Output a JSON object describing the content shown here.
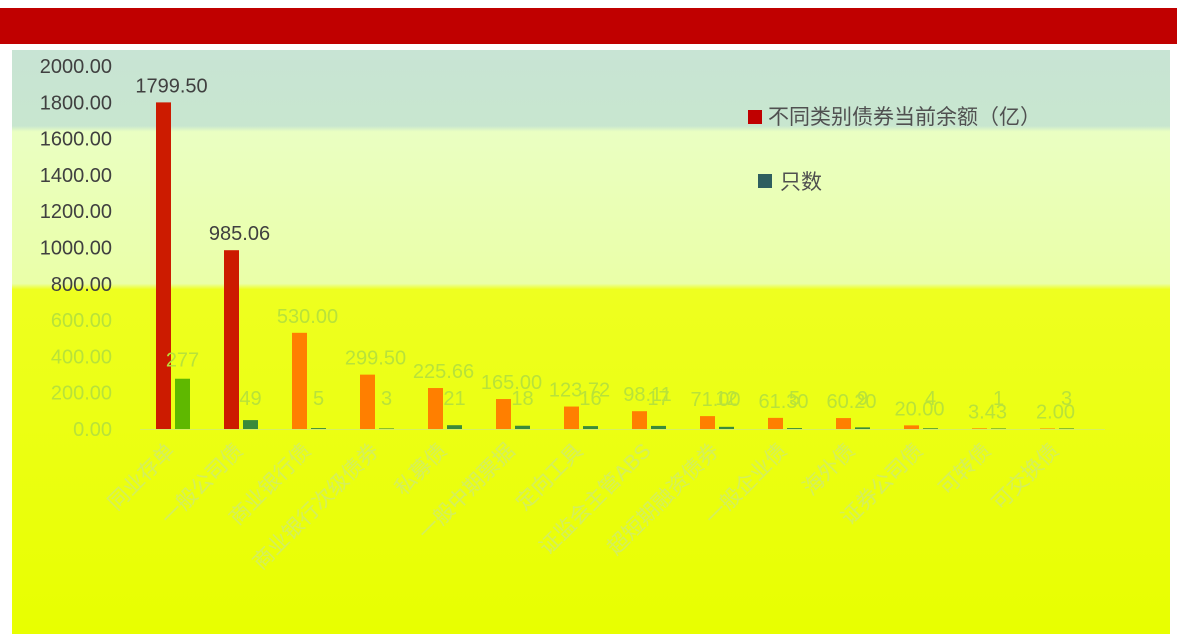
{
  "chart_data": {
    "type": "bar",
    "title": "",
    "xlabel": "",
    "ylabel": "",
    "ylim": [
      0,
      2000
    ],
    "yticks": [
      "0.00",
      "200.00",
      "400.00",
      "600.00",
      "800.00",
      "1000.00",
      "1200.00",
      "1400.00",
      "1600.00",
      "1800.00",
      "2000.00"
    ],
    "grid": false,
    "legend_position": "top-right",
    "categories": [
      "同业存单",
      "一般公司债",
      "商业银行债",
      "商业银行次级债券",
      "私募债",
      "一般中期票据",
      "定向工具",
      "证监会主管ABS",
      "超短期融资债券",
      "一般企业债",
      "海外债",
      "证券公司债",
      "可转债",
      "可交换债"
    ],
    "series": [
      {
        "name": "不同类别债券当前余额（亿）",
        "color": "#ff7f00",
        "values": [
          1799.5,
          985.06,
          530.0,
          299.5,
          225.66,
          165.0,
          123.72,
          98.11,
          71.0,
          61.3,
          60.2,
          20.0,
          3.43,
          2.0
        ],
        "labels": [
          "1799.50",
          "985.06",
          "530.00",
          "299.50",
          "225.66",
          "165.00",
          "123.72",
          "98.11",
          "71.00",
          "61.30",
          "60.20",
          "20.00",
          "3.43",
          "2.00"
        ]
      },
      {
        "name": "只数",
        "color": "#2f5f5f",
        "values": [
          277,
          49,
          5,
          3,
          21,
          18,
          16,
          17,
          12,
          5,
          9,
          4,
          1,
          3
        ],
        "labels": [
          "277",
          "49",
          "5",
          "3",
          "21",
          "18",
          "16",
          "17",
          "12",
          "5",
          "9",
          "4",
          "1",
          "3"
        ]
      }
    ]
  }
}
